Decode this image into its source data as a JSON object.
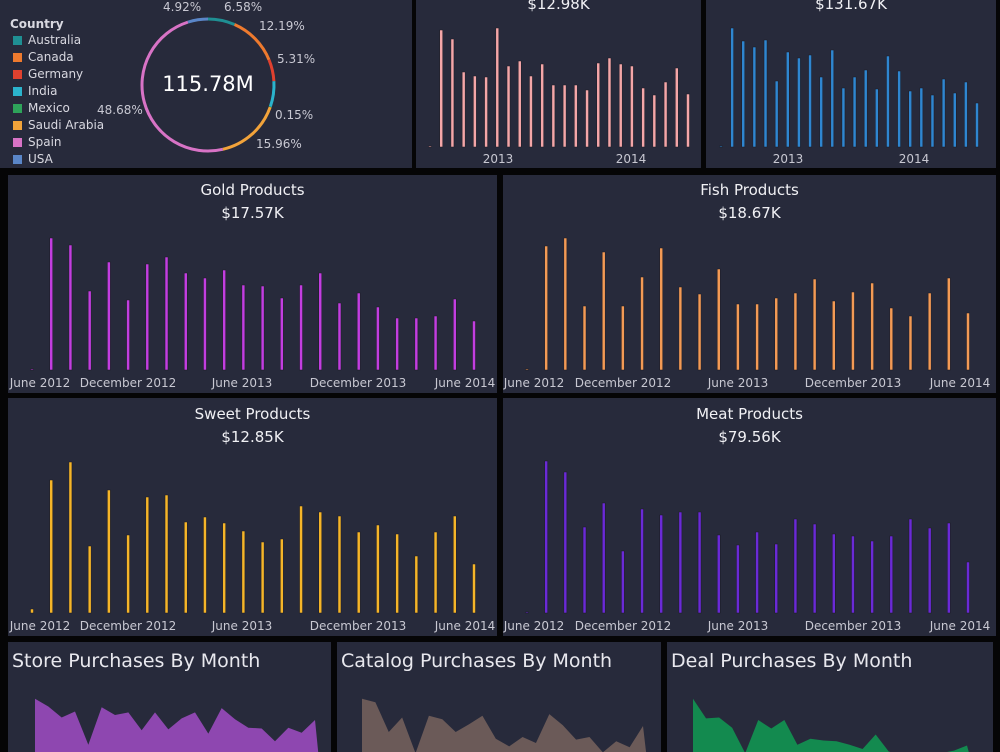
{
  "donut": {
    "legend_title": "Country",
    "total": "115.78M",
    "countries": [
      {
        "name": "Australia",
        "color": "#1f8f93",
        "value": 6.58,
        "label": "6.58%"
      },
      {
        "name": "Canada",
        "color": "#ee7a2e",
        "value": 12.19,
        "label": "12.19%"
      },
      {
        "name": "Germany",
        "color": "#e0412f",
        "value": 5.31,
        "label": "5.31%"
      },
      {
        "name": "India",
        "color": "#2bb3cc",
        "value": null,
        "label": ""
      },
      {
        "name": "Mexico",
        "color": "#2ea35a",
        "value": 0.15,
        "label": "0.15%"
      },
      {
        "name": "Saudi Arabia",
        "color": "#f2a33a",
        "value": 15.96,
        "label": "15.96%"
      },
      {
        "name": "Spain",
        "color": "#d873c6",
        "value": 48.68,
        "label": "48.68%"
      },
      {
        "name": "USA",
        "color": "#5a86c8",
        "value": 4.92,
        "label": "4.92%"
      }
    ]
  },
  "chart_data": [
    {
      "id": "top-pink",
      "type": "bar",
      "title": "",
      "value_label": "$12.98K",
      "color": "#f4a6a8",
      "ticks": [
        "2013",
        "2014"
      ],
      "values": [
        1,
        117,
        108,
        75,
        71,
        70,
        119,
        81,
        86,
        71,
        83,
        62,
        62,
        62,
        57,
        84,
        89,
        83,
        81,
        59,
        52,
        65,
        79,
        53
      ]
    },
    {
      "id": "top-blue",
      "type": "bar",
      "title": "",
      "value_label": "$131.67K",
      "color": "#2f86d0",
      "ticks": [
        "2013",
        "2014"
      ],
      "values": [
        1,
        119,
        106,
        100,
        107,
        66,
        95,
        89,
        92,
        70,
        97,
        59,
        70,
        77,
        58,
        91,
        76,
        56,
        59,
        52,
        68,
        54,
        65,
        44
      ]
    },
    {
      "id": "gold",
      "type": "bar",
      "title": "Gold Products",
      "value_label": "$17.57K",
      "color": "#c23ee0",
      "ticks": [
        "June 2012",
        "December 2012",
        "June 2013",
        "December 2013",
        "June 2014"
      ],
      "values": [
        1,
        132,
        125,
        79,
        108,
        70,
        106,
        113,
        97,
        92,
        100,
        85,
        84,
        72,
        85,
        97,
        67,
        77,
        63,
        52,
        52,
        54,
        71,
        49
      ]
    },
    {
      "id": "fish",
      "type": "bar",
      "title": "Fish Products",
      "value_label": "$18.67K",
      "color": "#f39a55",
      "ticks": [
        "June 2012",
        "December 2012",
        "June 2013",
        "December 2013",
        "June 2014"
      ],
      "values": [
        1,
        124,
        132,
        64,
        118,
        64,
        93,
        122,
        83,
        76,
        101,
        66,
        66,
        72,
        77,
        91,
        69,
        78,
        87,
        62,
        54,
        77,
        92,
        57
      ]
    },
    {
      "id": "sweet",
      "type": "bar",
      "title": "Sweet Products",
      "value_label": "$12.85K",
      "color": "#f5b529",
      "ticks": [
        "June 2012",
        "December 2012",
        "June 2013",
        "December 2013",
        "June 2014"
      ],
      "values": [
        4,
        133,
        151,
        67,
        123,
        78,
        116,
        118,
        91,
        96,
        90,
        82,
        71,
        74,
        107,
        101,
        97,
        81,
        88,
        79,
        57,
        81,
        97,
        49
      ]
    },
    {
      "id": "meat",
      "type": "bar",
      "title": "Meat Products",
      "value_label": "$79.56K",
      "color": "#6a2ad6",
      "ticks": [
        "June 2012",
        "December 2012",
        "June 2013",
        "December 2013",
        "June 2014"
      ],
      "values": [
        1,
        152,
        141,
        86,
        110,
        62,
        104,
        98,
        101,
        101,
        78,
        68,
        81,
        69,
        94,
        89,
        79,
        77,
        72,
        77,
        94,
        85,
        90,
        51
      ]
    },
    {
      "id": "store",
      "type": "area",
      "title": "Store Purchases By Month",
      "color": "#8e47b0",
      "values": [
        72,
        63,
        50,
        57,
        18,
        62,
        53,
        56,
        35,
        56,
        36,
        49,
        56,
        31,
        61,
        48,
        38,
        37,
        22,
        38,
        32,
        47
      ]
    },
    {
      "id": "catalog",
      "type": "area",
      "title": "Catalog Purchases By Month",
      "color": "#6b5a58",
      "values": [
        72,
        68,
        33,
        50,
        8,
        52,
        48,
        33,
        42,
        52,
        25,
        16,
        27,
        20,
        54,
        41,
        24,
        27,
        9,
        22,
        15,
        40
      ]
    },
    {
      "id": "deal",
      "type": "area",
      "title": "Deal Purchases By Month",
      "color": "#138a4f",
      "values": [
        72,
        49,
        50,
        38,
        8,
        47,
        37,
        47,
        18,
        25,
        23,
        22,
        18,
        13,
        30,
        10,
        5,
        5,
        5,
        8,
        11,
        17
      ]
    }
  ]
}
